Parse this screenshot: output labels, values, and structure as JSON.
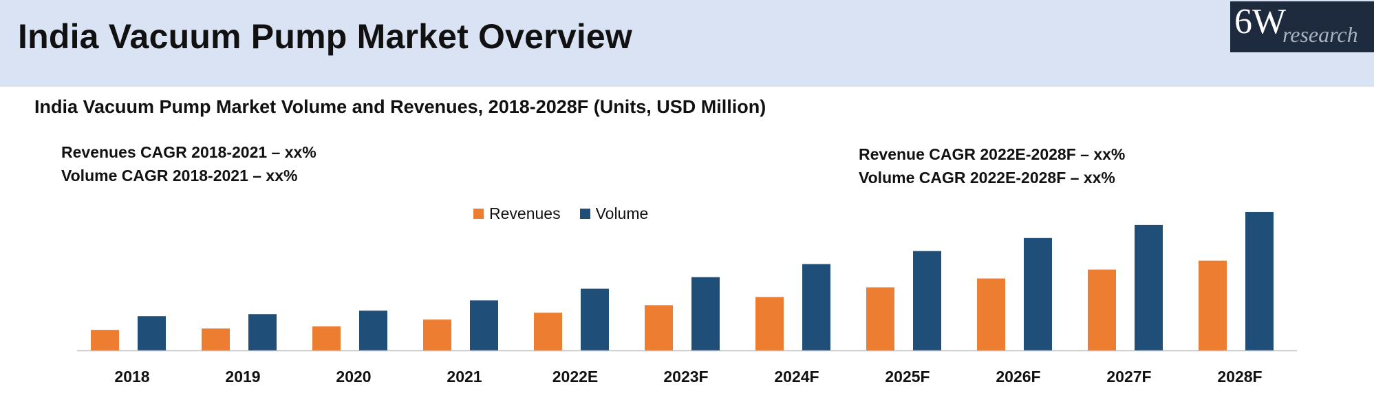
{
  "header": {
    "title": "India Vacuum Pump Market Overview",
    "logo_main": "6W",
    "logo_sub": "research"
  },
  "colors": {
    "header_bg": "#dae3f3",
    "revenues": "#ed7d31",
    "volume": "#1f4e79",
    "axis": "#bfbfbf"
  },
  "annotations": {
    "left_line1": "Revenues CAGR 2018-2021 – xx%",
    "left_line2": "Volume CAGR 2018-2021 – xx%",
    "right_line1": "Revenue CAGR 2022E-2028F – xx%",
    "right_line2": "Volume CAGR 2022E-2028F – xx%"
  },
  "chart_data": {
    "type": "bar",
    "title": "India Vacuum Pump Market Volume and Revenues, 2018-2028F (Units, USD Million)",
    "xlabel": "",
    "ylabel": "",
    "ylim": [
      0,
      210
    ],
    "grid": false,
    "legend_position": "top-center",
    "categories": [
      "2018",
      "2019",
      "2020",
      "2021",
      "2022E",
      "2023F",
      "2024F",
      "2025F",
      "2026F",
      "2027F",
      "2028F"
    ],
    "series": [
      {
        "name": "Revenues",
        "values": [
          30,
          32,
          35,
          45,
          55,
          66,
          78,
          92,
          105,
          118,
          131
        ]
      },
      {
        "name": "Volume",
        "values": [
          50,
          53,
          58,
          73,
          90,
          107,
          126,
          145,
          164,
          183,
          202
        ]
      }
    ]
  }
}
